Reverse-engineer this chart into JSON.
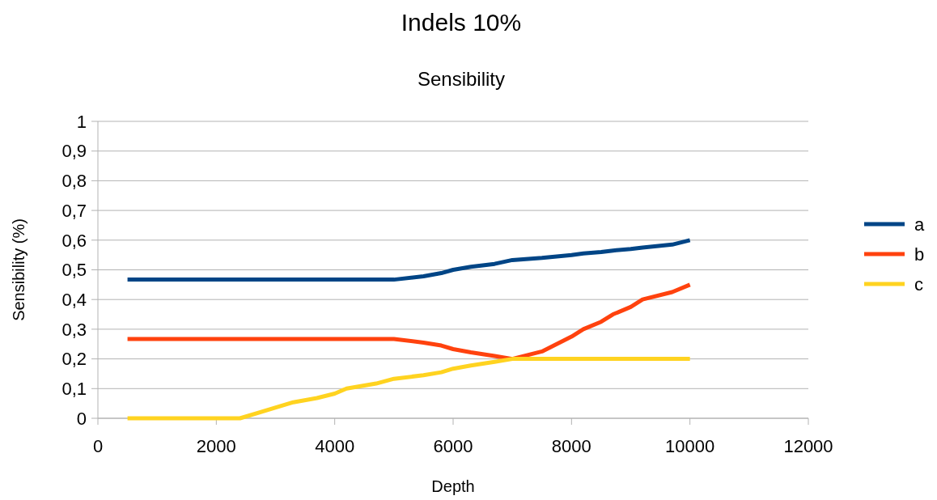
{
  "chart_data": {
    "type": "line",
    "title": "Indels 10%",
    "subtitle": "Sensibility",
    "xlabel": "Depth",
    "ylabel": "Sensibility (%)",
    "x": [
      500,
      2400,
      3300,
      3700,
      4000,
      4200,
      4700,
      5000,
      5500,
      5800,
      6000,
      6300,
      6700,
      7000,
      7500,
      8000,
      8200,
      8500,
      8700,
      9000,
      9200,
      9700,
      10000
    ],
    "series": [
      {
        "name": "a",
        "color": "#004586",
        "values": [
          0.467,
          0.467,
          0.467,
          0.467,
          0.467,
          0.467,
          0.467,
          0.467,
          0.478,
          0.489,
          0.5,
          0.51,
          0.52,
          0.533,
          0.54,
          0.55,
          0.555,
          0.56,
          0.565,
          0.57,
          0.575,
          0.585,
          0.6
        ]
      },
      {
        "name": "b",
        "color": "#ff420e",
        "values": [
          0.267,
          0.267,
          0.267,
          0.267,
          0.267,
          0.267,
          0.267,
          0.267,
          0.255,
          0.245,
          0.233,
          0.222,
          0.21,
          0.2,
          0.225,
          0.275,
          0.3,
          0.325,
          0.35,
          0.375,
          0.4,
          0.425,
          0.45
        ]
      },
      {
        "name": "c",
        "color": "#ffd320",
        "values": [
          0,
          0,
          0.054,
          0.068,
          0.083,
          0.1,
          0.117,
          0.133,
          0.145,
          0.155,
          0.167,
          0.178,
          0.19,
          0.2,
          0.2,
          0.2,
          0.2,
          0.2,
          0.2,
          0.2,
          0.2,
          0.2,
          0.2
        ]
      }
    ],
    "xlim": [
      0,
      12000
    ],
    "xticks": [
      0,
      2000,
      4000,
      6000,
      8000,
      10000,
      12000
    ],
    "ylim": [
      0,
      1
    ],
    "yticks": [
      0,
      {
        "value": 0.1,
        "label": "0,1"
      },
      {
        "value": 0.2,
        "label": "0,2"
      },
      {
        "value": 0.3,
        "label": "0,3"
      },
      {
        "value": 0.4,
        "label": "0,4"
      },
      {
        "value": 0.5,
        "label": "0,5"
      },
      {
        "value": 0.6,
        "label": "0,6"
      },
      {
        "value": 0.7,
        "label": "0,7"
      },
      {
        "value": 0.8,
        "label": "0,8"
      },
      {
        "value": 0.9,
        "label": "0,9"
      },
      1
    ],
    "grid": "y",
    "legend": "right",
    "marker": "none",
    "line_style": "solid"
  }
}
